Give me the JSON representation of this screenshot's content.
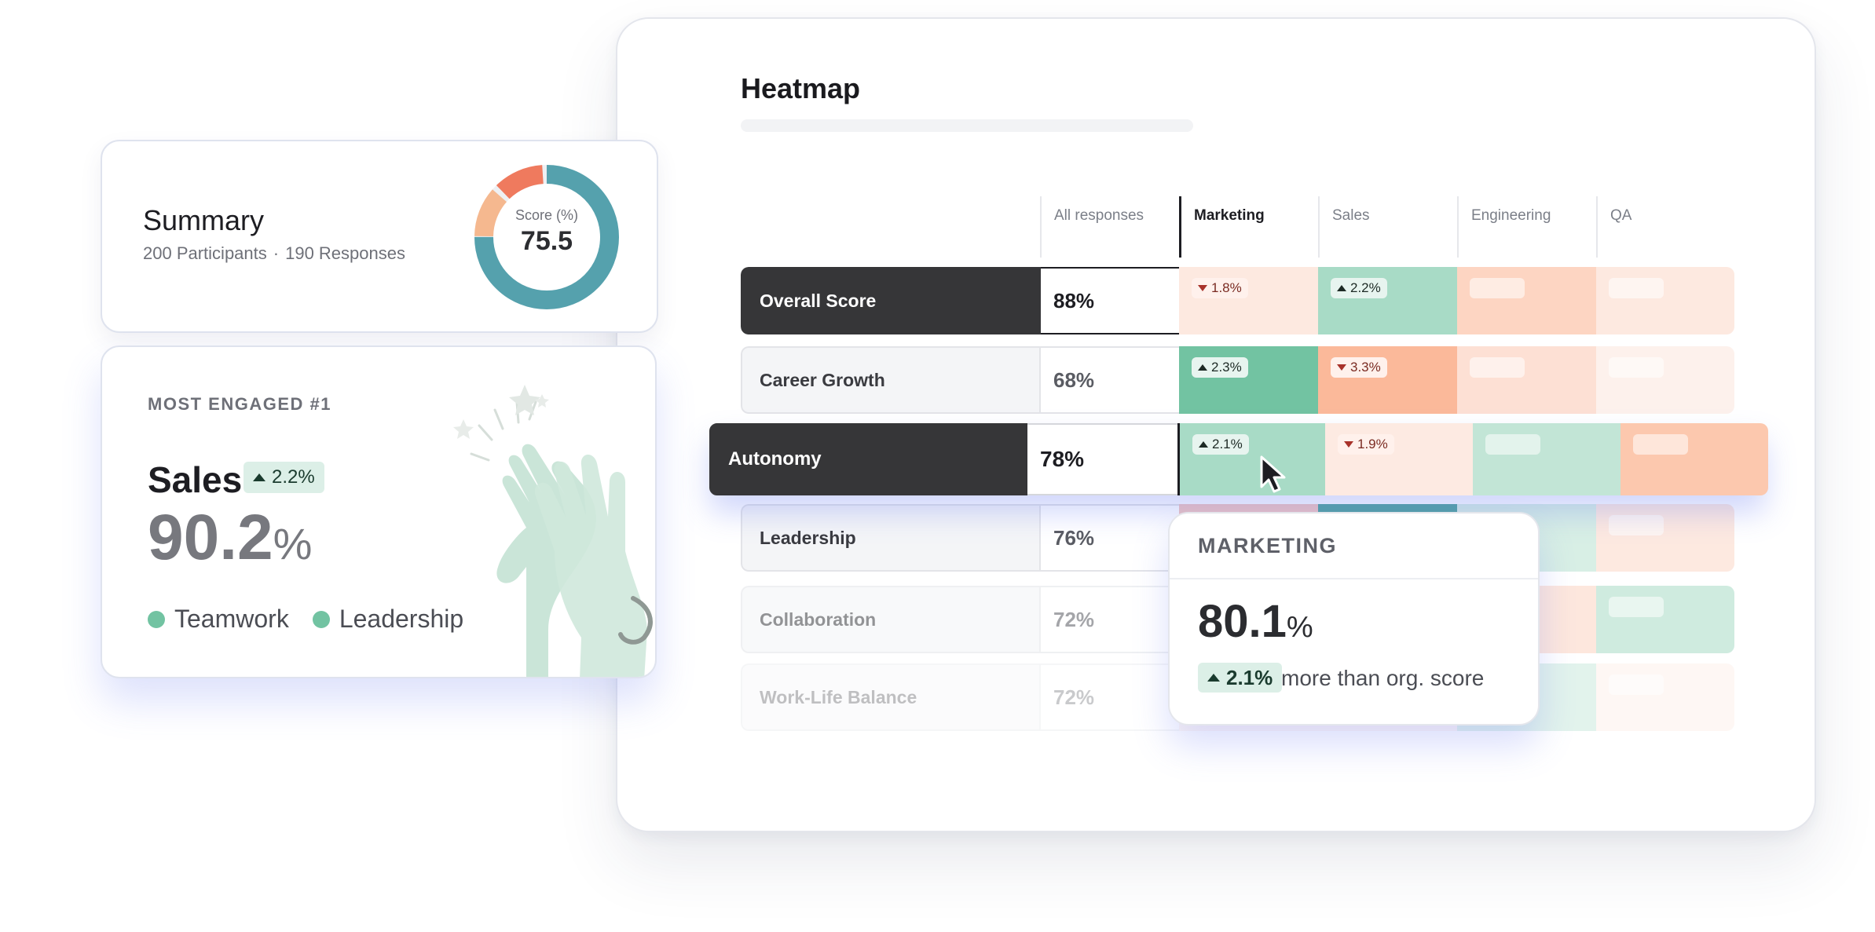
{
  "colors": {
    "dark_row": "#363638",
    "green_strong": "#72c3a2",
    "green_medium": "#a8dbc6",
    "green_light": "#d8efe5",
    "orange_strong": "#fbb99a",
    "orange_medium": "#fdd5c2",
    "orange_light": "#fde9e0",
    "orange_faint": "#fdf1ec",
    "donut_teal": "#55a1ad",
    "donut_peach": "#f5b88f",
    "donut_coral": "#ef7a5e",
    "highlight_glow": "#5a6ef0"
  },
  "heatmap": {
    "title": "Heatmap",
    "columns": [
      "All responses",
      "Marketing",
      "Sales",
      "Engineering",
      "QA"
    ],
    "active_column": "Marketing",
    "rows": [
      {
        "label": "Overall Score",
        "all": "88%",
        "cells": [
          {
            "color": "#fde9e0",
            "chip": {
              "dir": "down",
              "text": "1.8%"
            }
          },
          {
            "color": "#a8dbc6",
            "chip": {
              "dir": "up",
              "text": "2.2%"
            }
          },
          {
            "color": "#fdd5c2",
            "chip": {
              "dir": "blank"
            }
          },
          {
            "color": "#fde9e0",
            "chip": {
              "dir": "blank"
            }
          }
        ]
      },
      {
        "label": "Career Growth",
        "all": "68%",
        "cells": [
          {
            "color": "#72c3a2",
            "chip": {
              "dir": "up",
              "text": "2.3%"
            }
          },
          {
            "color": "#fbb99a",
            "chip": {
              "dir": "down",
              "text": "3.3%"
            }
          },
          {
            "color": "#fde0d4",
            "chip": {
              "dir": "blank"
            }
          },
          {
            "color": "#fdf1ec",
            "chip": {
              "dir": "blank"
            }
          }
        ]
      },
      {
        "label": "Autonomy",
        "all": "78%",
        "cells": [
          {
            "color": "#a8dbc6",
            "chip": {
              "dir": "up",
              "text": "2.1%"
            }
          },
          {
            "color": "#fdeae2",
            "chip": {
              "dir": "down",
              "text": "1.9%"
            }
          },
          {
            "color": "#c2e5d6",
            "chip": {
              "dir": "blank"
            }
          },
          {
            "color": "#fcc8ae",
            "chip": {
              "dir": "blank"
            }
          }
        ]
      },
      {
        "label": "Leadership",
        "all": "76%",
        "cells": [
          {
            "color": "#f3c7c2",
            "chip": {
              "dir": "none"
            }
          },
          {
            "color": "#55a6a0",
            "chip": {
              "dir": "none"
            }
          },
          {
            "color": "#d8efe5",
            "chip": {
              "dir": "none"
            }
          },
          {
            "color": "#fde9e0",
            "chip": {
              "dir": "blank"
            }
          }
        ]
      },
      {
        "label": "Collaboration",
        "all": "72%",
        "cells": [
          {
            "color": "#fde9e0",
            "chip": {
              "dir": "none"
            }
          },
          {
            "color": "#fde9e0",
            "chip": {
              "dir": "none"
            }
          },
          {
            "color": "#fdd5c2",
            "chip": {
              "dir": "none"
            }
          },
          {
            "color": "#a8dbc6",
            "chip": {
              "dir": "blank"
            }
          }
        ]
      },
      {
        "label": "Work-Life Balance",
        "all": "72%",
        "cells": [
          {
            "color": "#fde9e0",
            "chip": {
              "dir": "none"
            }
          },
          {
            "color": "#fde9e0",
            "chip": {
              "dir": "none"
            }
          },
          {
            "color": "#a8dbc6",
            "chip": {
              "dir": "none"
            }
          },
          {
            "color": "#fde9e0",
            "chip": {
              "dir": "blank"
            }
          }
        ]
      }
    ]
  },
  "tooltip": {
    "title": "MARKETING",
    "value": "80.1",
    "unit": "%",
    "delta": "2.1%",
    "note": "more than org. score"
  },
  "summary": {
    "title": "Summary",
    "participants": "200 Participants",
    "separator": "·",
    "responses": "190 Responses",
    "score_label": "Score (%)",
    "score_value": "75.5",
    "score_fraction": 0.755
  },
  "engaged": {
    "kicker": "MOST ENGAGED #1",
    "name": "Sales",
    "delta": "2.2%",
    "value": "90.2",
    "unit": "%",
    "tags": [
      "Teamwork",
      "Leadership"
    ]
  }
}
